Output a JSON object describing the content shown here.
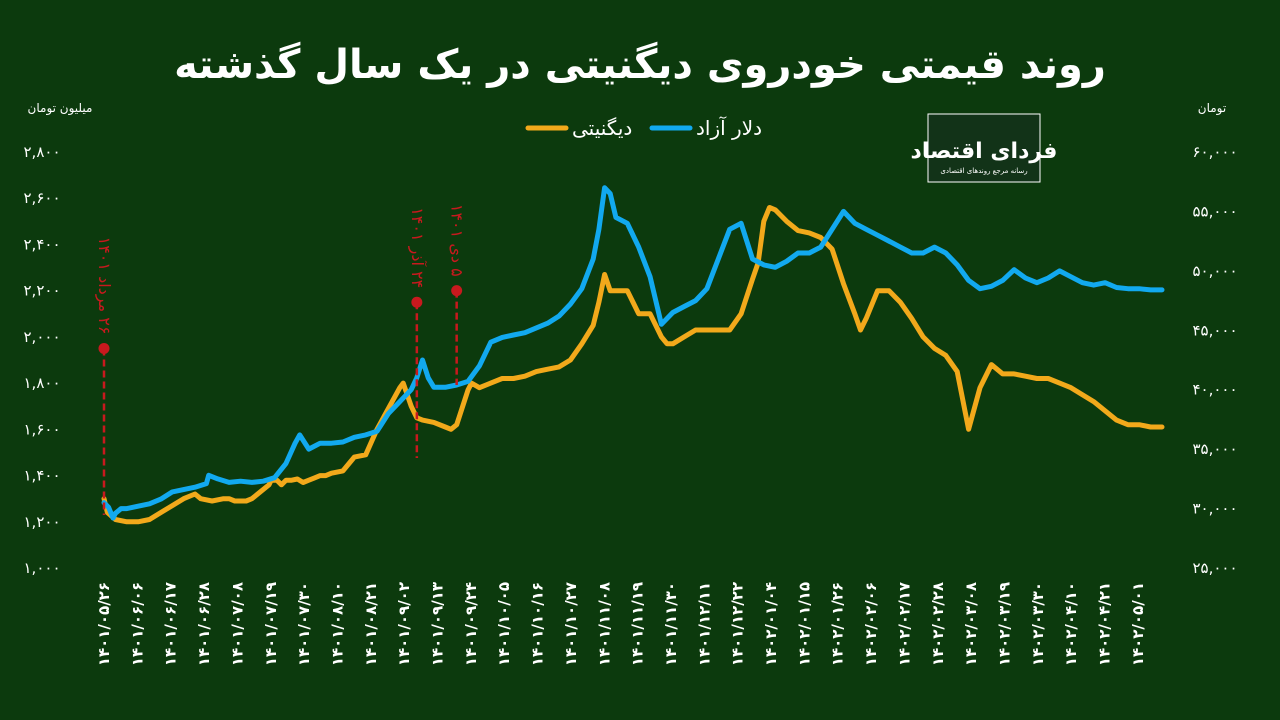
{
  "chart_data": {
    "type": "line",
    "title": "روند قیمتی خودروی دیگنیتی در یک سال گذشته",
    "left_axis": {
      "unit": "میلیون تومان",
      "ticks": [
        1000,
        1200,
        1400,
        1600,
        1800,
        2000,
        2200,
        2400,
        2600,
        2800
      ],
      "tick_labels": [
        "۱,۰۰۰",
        "۱,۲۰۰",
        "۱,۴۰۰",
        "۱,۶۰۰",
        "۱,۸۰۰",
        "۲,۰۰۰",
        "۲,۲۰۰",
        "۲,۴۰۰",
        "۲,۶۰۰",
        "۲,۸۰۰"
      ],
      "ylim": [
        1000,
        2800
      ]
    },
    "right_axis": {
      "unit": "تومان",
      "ticks": [
        25000,
        30000,
        35000,
        40000,
        45000,
        50000,
        55000,
        60000
      ],
      "tick_labels": [
        "۲۵,۰۰۰",
        "۳۰,۰۰۰",
        "۳۵,۰۰۰",
        "۴۰,۰۰۰",
        "۴۵,۰۰۰",
        "۵۰,۰۰۰",
        "۵۵,۰۰۰",
        "۶۰,۰۰۰"
      ],
      "ylim": [
        25000,
        60000
      ]
    },
    "x_tick_labels": [
      "۱۴۰۱/۰۵/۲۶",
      "۱۴۰۱/۰۶/۰۶",
      "۱۴۰۱/۰۶/۱۷",
      "۱۴۰۱/۰۶/۲۸",
      "۱۴۰۱/۰۷/۰۸",
      "۱۴۰۱/۰۷/۱۹",
      "۱۴۰۱/۰۷/۳۰",
      "۱۴۰۱/۰۸/۱۰",
      "۱۴۰۱/۰۸/۲۱",
      "۱۴۰۱/۰۹/۰۲",
      "۱۴۰۱/۰۹/۱۳",
      "۱۴۰۱/۰۹/۲۴",
      "۱۴۰۱/۱۰/۰۵",
      "۱۴۰۱/۱۰/۱۶",
      "۱۴۰۱/۱۰/۲۷",
      "۱۴۰۱/۱۱/۰۸",
      "۱۴۰۱/۱۱/۱۹",
      "۱۴۰۱/۱۱/۳۰",
      "۱۴۰۱/۱۲/۱۱",
      "۱۴۰۱/۱۲/۲۲",
      "۱۴۰۲/۰۱/۰۴",
      "۱۴۰۲/۰۱/۱۵",
      "۱۴۰۲/۰۱/۲۶",
      "۱۴۰۲/۰۲/۰۶",
      "۱۴۰۲/۰۲/۱۷",
      "۱۴۰۲/۰۲/۲۸",
      "۱۴۰۲/۰۳/۰۸",
      "۱۴۰۲/۰۳/۱۹",
      "۱۴۰۲/۰۳/۳۰",
      "۱۴۰۲/۰۴/۱۰",
      "۱۴۰۲/۰۴/۲۱",
      "۱۴۰۲/۰۵/۰۱"
    ],
    "legend": {
      "placement": "top-center"
    },
    "series": [
      {
        "name": "دیگنیتی",
        "axis": "left",
        "color": "#f2a91b",
        "points": [
          [
            0,
            1300
          ],
          [
            0.3,
            1240
          ],
          [
            1,
            1210
          ],
          [
            2,
            1200
          ],
          [
            3,
            1200
          ],
          [
            4,
            1210
          ],
          [
            5,
            1240
          ],
          [
            6,
            1270
          ],
          [
            7,
            1300
          ],
          [
            8,
            1320
          ],
          [
            8.5,
            1300
          ],
          [
            9.5,
            1290
          ],
          [
            10.5,
            1300
          ],
          [
            11,
            1300
          ],
          [
            11.5,
            1290
          ],
          [
            12.5,
            1290
          ],
          [
            13,
            1300
          ],
          [
            14,
            1340
          ],
          [
            14.5,
            1360
          ],
          [
            14.7,
            1380
          ],
          [
            15.2,
            1380
          ],
          [
            15.6,
            1360
          ],
          [
            16,
            1380
          ],
          [
            16.5,
            1380
          ],
          [
            17,
            1385
          ],
          [
            17.5,
            1370
          ],
          [
            18,
            1380
          ],
          [
            18.5,
            1390
          ],
          [
            19,
            1400
          ],
          [
            19.5,
            1400
          ],
          [
            20,
            1410
          ],
          [
            21,
            1420
          ],
          [
            22,
            1480
          ],
          [
            23,
            1490
          ],
          [
            24,
            1600
          ],
          [
            25,
            1690
          ],
          [
            26,
            1780
          ],
          [
            26.3,
            1800
          ],
          [
            27,
            1700
          ],
          [
            27.5,
            1650
          ],
          [
            28,
            1640
          ],
          [
            29,
            1630
          ],
          [
            30,
            1610
          ],
          [
            30.5,
            1600
          ],
          [
            31,
            1620
          ],
          [
            32,
            1770
          ],
          [
            32.3,
            1800
          ],
          [
            33,
            1780
          ],
          [
            34,
            1800
          ],
          [
            35,
            1820
          ],
          [
            36,
            1820
          ],
          [
            37,
            1830
          ],
          [
            38,
            1850
          ],
          [
            39,
            1860
          ],
          [
            40,
            1870
          ],
          [
            41,
            1900
          ],
          [
            42,
            1970
          ],
          [
            43,
            2050
          ],
          [
            43.5,
            2150
          ],
          [
            44,
            2270
          ],
          [
            44.5,
            2200
          ],
          [
            45,
            2200
          ],
          [
            46,
            2200
          ],
          [
            47,
            2100
          ],
          [
            48,
            2100
          ],
          [
            49,
            2000
          ],
          [
            49.5,
            1970
          ],
          [
            50,
            1970
          ],
          [
            51,
            2000
          ],
          [
            52,
            2030
          ],
          [
            53,
            2030
          ],
          [
            54,
            2030
          ],
          [
            55,
            2030
          ],
          [
            56,
            2100
          ],
          [
            57,
            2250
          ],
          [
            57.5,
            2320
          ],
          [
            58,
            2500
          ],
          [
            58.5,
            2560
          ],
          [
            59,
            2550
          ],
          [
            60,
            2500
          ],
          [
            61,
            2460
          ],
          [
            62,
            2450
          ],
          [
            63,
            2430
          ],
          [
            64,
            2380
          ],
          [
            65,
            2230
          ],
          [
            66,
            2100
          ],
          [
            66.5,
            2030
          ],
          [
            67,
            2080
          ],
          [
            68,
            2200
          ],
          [
            69,
            2200
          ],
          [
            70,
            2150
          ],
          [
            71,
            2080
          ],
          [
            72,
            2000
          ],
          [
            73,
            1950
          ],
          [
            74,
            1920
          ],
          [
            75,
            1850
          ],
          [
            76,
            1600
          ],
          [
            77,
            1780
          ],
          [
            78,
            1880
          ],
          [
            79,
            1840
          ],
          [
            80,
            1840
          ],
          [
            81,
            1830
          ],
          [
            82,
            1820
          ],
          [
            83,
            1820
          ],
          [
            84,
            1800
          ],
          [
            85,
            1780
          ],
          [
            86,
            1750
          ],
          [
            87,
            1720
          ],
          [
            88,
            1680
          ],
          [
            89,
            1640
          ],
          [
            90,
            1620
          ],
          [
            91,
            1620
          ],
          [
            92,
            1610
          ],
          [
            93,
            1610
          ]
        ]
      },
      {
        "name": "دلار آزاد",
        "axis": "right",
        "color": "#12a9ef",
        "points": [
          [
            0,
            30500
          ],
          [
            0.4,
            30100
          ],
          [
            0.8,
            29200
          ],
          [
            1,
            29600
          ],
          [
            1.5,
            30000
          ],
          [
            2,
            30000
          ],
          [
            3,
            30200
          ],
          [
            4,
            30400
          ],
          [
            5,
            30800
          ],
          [
            6,
            31400
          ],
          [
            7,
            31600
          ],
          [
            8,
            31800
          ],
          [
            9,
            32100
          ],
          [
            9.2,
            32800
          ],
          [
            10,
            32500
          ],
          [
            11,
            32200
          ],
          [
            12,
            32300
          ],
          [
            13,
            32200
          ],
          [
            14,
            32300
          ],
          [
            15,
            32600
          ],
          [
            16,
            33800
          ],
          [
            16.8,
            35500
          ],
          [
            17.2,
            36200
          ],
          [
            18,
            35000
          ],
          [
            19,
            35500
          ],
          [
            20,
            35500
          ],
          [
            21,
            35600
          ],
          [
            22,
            36000
          ],
          [
            23,
            36200
          ],
          [
            24,
            36500
          ],
          [
            25,
            38000
          ],
          [
            26,
            39000
          ],
          [
            27,
            40000
          ],
          [
            27.5,
            41000
          ],
          [
            28,
            42500
          ],
          [
            28.5,
            41000
          ],
          [
            29,
            40200
          ],
          [
            30,
            40200
          ],
          [
            31,
            40400
          ],
          [
            32,
            40700
          ],
          [
            33,
            42000
          ],
          [
            34,
            44000
          ],
          [
            35,
            44400
          ],
          [
            36,
            44600
          ],
          [
            37,
            44800
          ],
          [
            38,
            45200
          ],
          [
            39,
            45600
          ],
          [
            40,
            46200
          ],
          [
            41,
            47200
          ],
          [
            42,
            48500
          ],
          [
            43,
            51000
          ],
          [
            43.5,
            53500
          ],
          [
            44,
            57000
          ],
          [
            44.5,
            56500
          ],
          [
            45,
            54500
          ],
          [
            46,
            54000
          ],
          [
            47,
            52000
          ],
          [
            48,
            49500
          ],
          [
            49,
            45500
          ],
          [
            50,
            46500
          ],
          [
            51,
            47000
          ],
          [
            52,
            47500
          ],
          [
            53,
            48500
          ],
          [
            54,
            51000
          ],
          [
            55,
            53500
          ],
          [
            56,
            54000
          ],
          [
            57,
            51000
          ],
          [
            58,
            50500
          ],
          [
            59,
            50300
          ],
          [
            60,
            50800
          ],
          [
            61,
            51500
          ],
          [
            62,
            51500
          ],
          [
            63,
            52000
          ],
          [
            64,
            53500
          ],
          [
            65,
            55000
          ],
          [
            66,
            54000
          ],
          [
            67,
            53500
          ],
          [
            68,
            53000
          ],
          [
            69,
            52500
          ],
          [
            70,
            52000
          ],
          [
            71,
            51500
          ],
          [
            72,
            51500
          ],
          [
            73,
            52000
          ],
          [
            74,
            51500
          ],
          [
            75,
            50500
          ],
          [
            76,
            49200
          ],
          [
            77,
            48500
          ],
          [
            78,
            48700
          ],
          [
            79,
            49200
          ],
          [
            80,
            50100
          ],
          [
            81,
            49400
          ],
          [
            82,
            49000
          ],
          [
            83,
            49400
          ],
          [
            84,
            50000
          ],
          [
            85,
            49500
          ],
          [
            86,
            49000
          ],
          [
            87,
            48800
          ],
          [
            88,
            49000
          ],
          [
            89,
            48600
          ],
          [
            90,
            48500
          ],
          [
            91,
            48500
          ],
          [
            92,
            48400
          ],
          [
            93,
            48400
          ]
        ]
      }
    ],
    "annotations": [
      {
        "text": "۲۶ مرداد ۱۴۰۱",
        "x": 0,
        "value": 1950,
        "axis": "left"
      },
      {
        "text": "۲۴ آذر ۱۴۰۱",
        "x": 27.5,
        "value": 2150,
        "axis": "left"
      },
      {
        "text": "۵ دی ۱۴۰۱",
        "x": 31,
        "value": 2200,
        "axis": "left"
      }
    ]
  },
  "logo": {
    "main": "فردای اقتصاد",
    "sub": "رسانه مرجع روندهای اقتصادی"
  }
}
